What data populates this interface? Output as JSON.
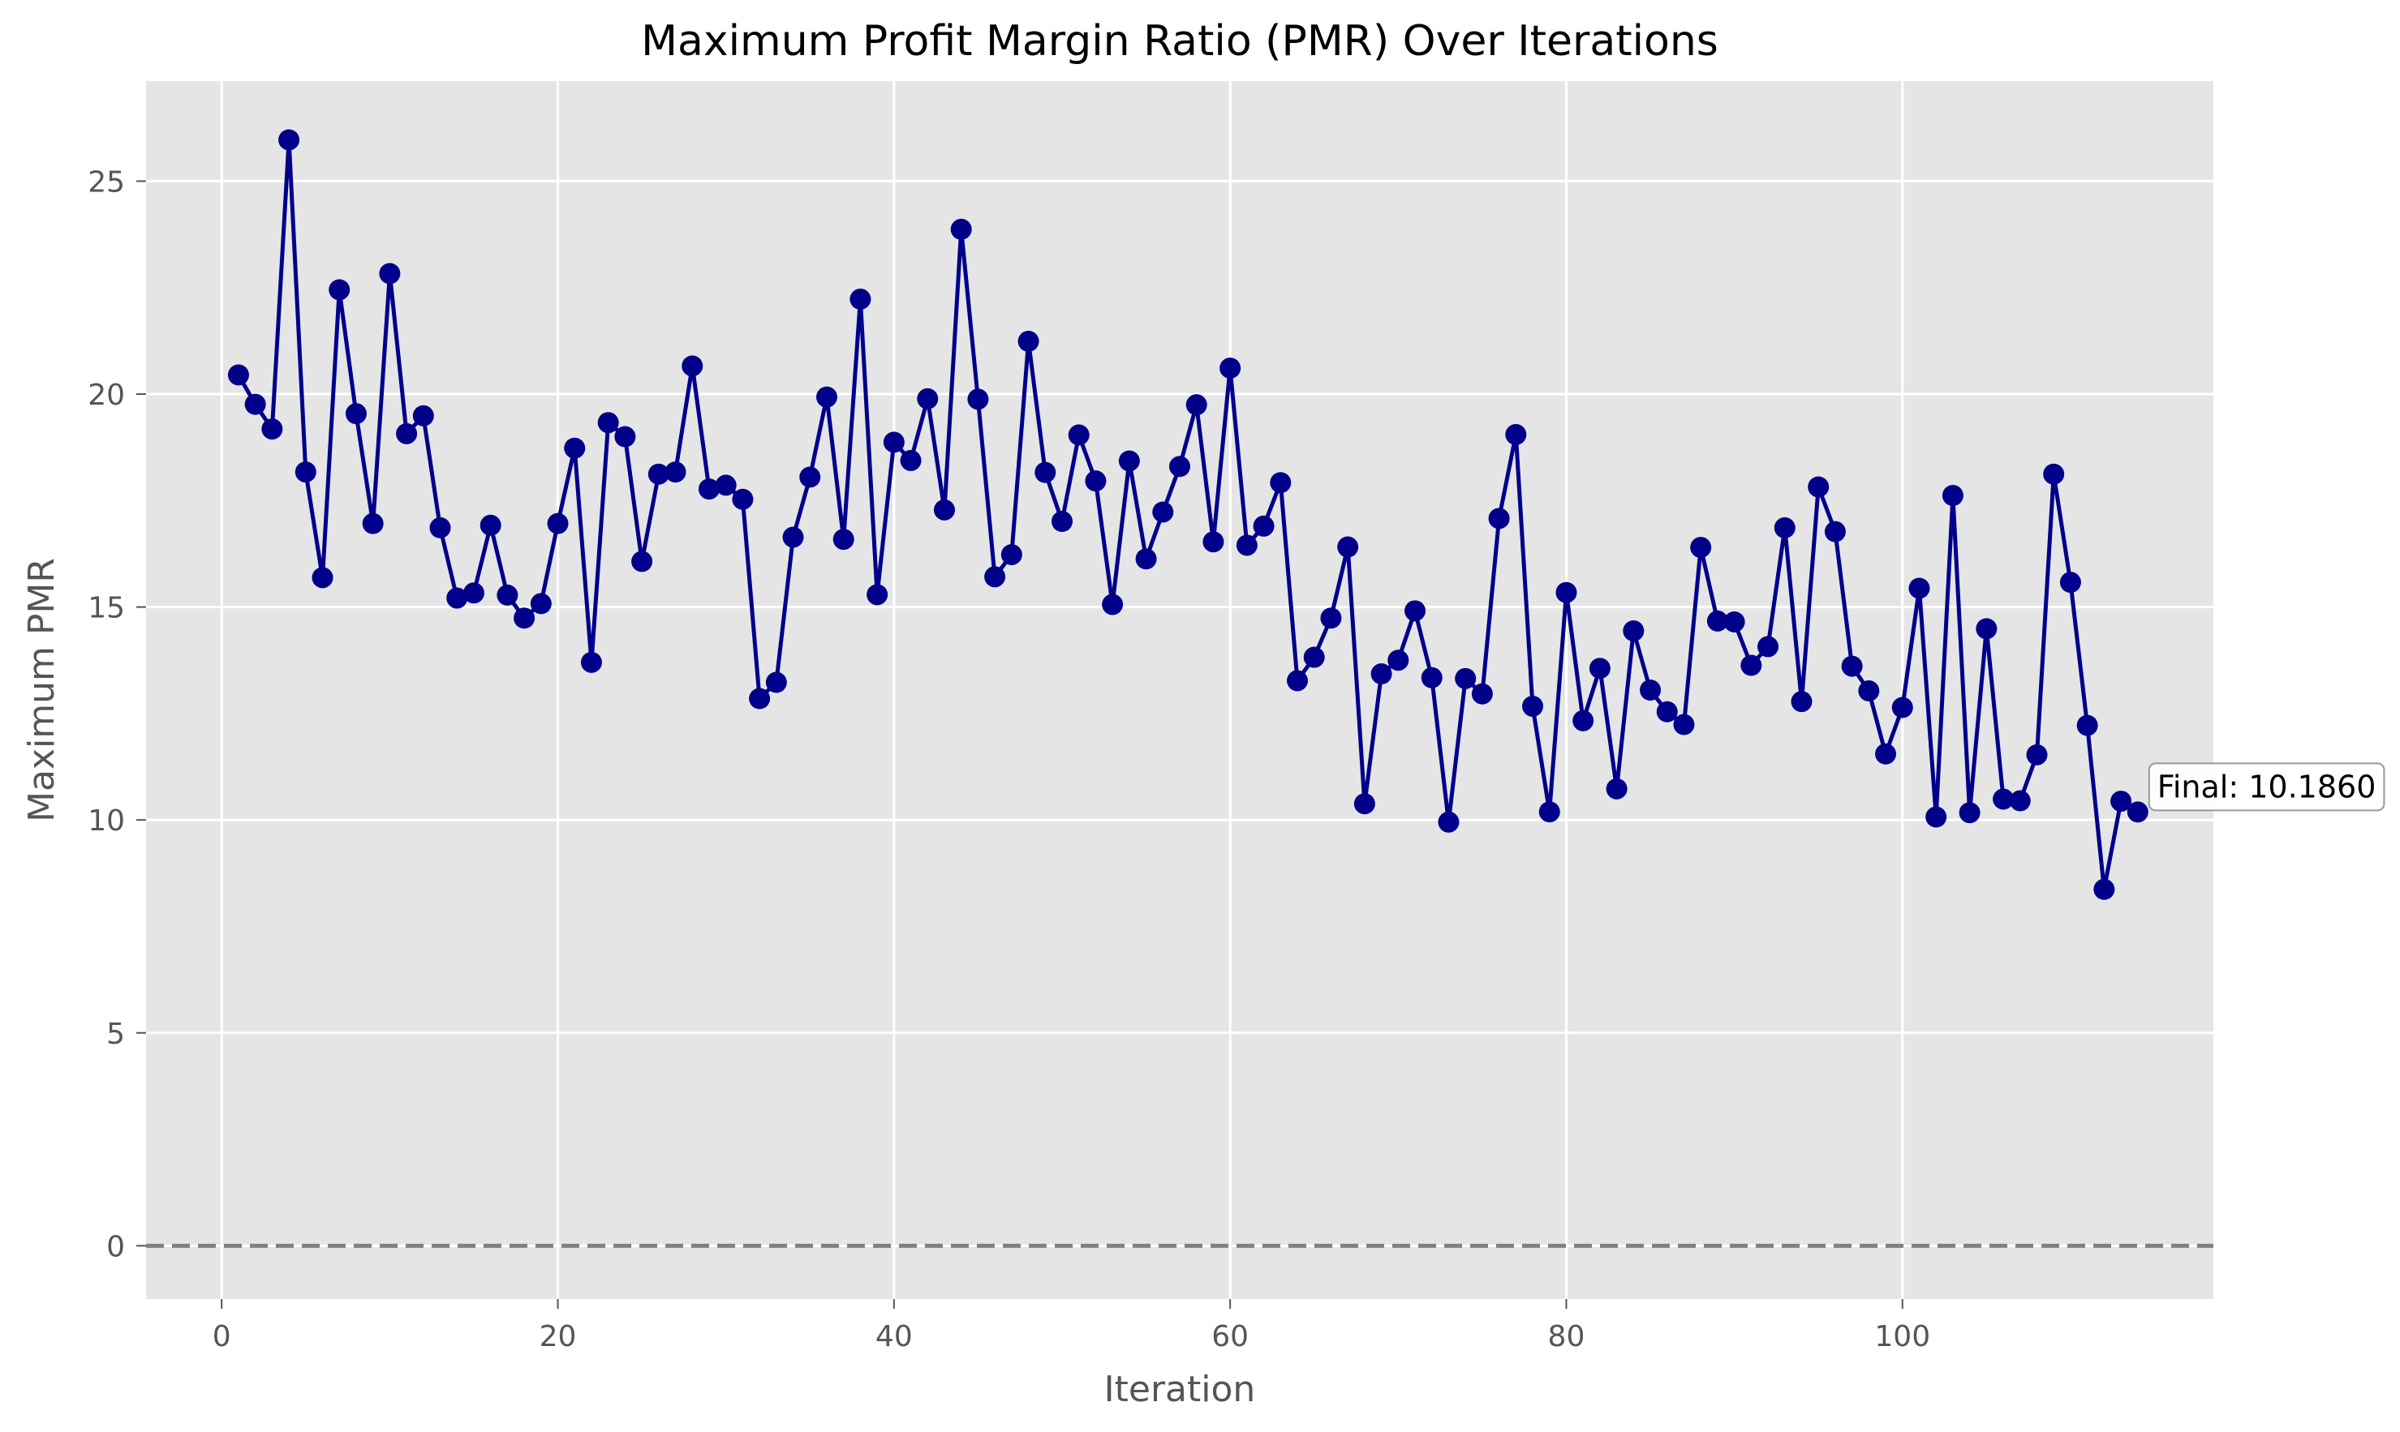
{
  "chart_data": {
    "type": "line",
    "title": "Maximum Profit Margin Ratio (PMR) Over Iterations",
    "xlabel": "Iteration",
    "ylabel": "Maximum PMR",
    "xlim": [
      -4.5,
      118.5
    ],
    "ylim": [
      -1.25,
      27.35
    ],
    "xticks": [
      0,
      20,
      40,
      60,
      80,
      100
    ],
    "yticks": [
      0,
      5,
      10,
      15,
      20,
      25
    ],
    "grid": true,
    "reference_line": {
      "y": 0,
      "style": "dashed",
      "color": "#808080"
    },
    "annotation": {
      "text": "Final: 10.1860",
      "x": 114,
      "y": 10.186
    },
    "colors": {
      "background": "#e5e5e5",
      "grid": "#ffffff",
      "line": "#00008b",
      "text": "#555555"
    },
    "series": [
      {
        "x": [
          1,
          2,
          3,
          4,
          5,
          6,
          7,
          8,
          9,
          10,
          11,
          12,
          13,
          14,
          15,
          16,
          17,
          18,
          19,
          20,
          21,
          22,
          23,
          24,
          25,
          26,
          27,
          28,
          29,
          30,
          31,
          32,
          33,
          34,
          35,
          36,
          37,
          38,
          39,
          40,
          41,
          42,
          43,
          44,
          45,
          46,
          47,
          48,
          49,
          50,
          51,
          52,
          53,
          54,
          55,
          56,
          57,
          58,
          59,
          60,
          61,
          62,
          63,
          64,
          65,
          66,
          67,
          68,
          69,
          70,
          71,
          72,
          73,
          74,
          75,
          76,
          77,
          78,
          79,
          80,
          81,
          82,
          83,
          84,
          85,
          86,
          87,
          88,
          89,
          90,
          91,
          92,
          93,
          94,
          95,
          96,
          97,
          98,
          99,
          100,
          101,
          102,
          103,
          104,
          105,
          106,
          107,
          108,
          109,
          110,
          111,
          112,
          113,
          114
        ],
        "values": [
          20.45,
          19.76,
          19.18,
          25.97,
          18.17,
          15.69,
          22.45,
          19.54,
          16.96,
          22.83,
          19.07,
          19.49,
          16.86,
          15.21,
          15.33,
          16.92,
          15.28,
          14.74,
          15.08,
          16.96,
          18.73,
          13.7,
          19.33,
          19.0,
          16.07,
          18.12,
          18.17,
          20.66,
          17.77,
          17.86,
          17.53,
          12.85,
          13.23,
          16.64,
          18.05,
          19.93,
          16.59,
          22.23,
          15.29,
          18.87,
          18.44,
          19.89,
          17.28,
          23.87,
          19.88,
          15.71,
          16.23,
          21.24,
          18.16,
          17.01,
          19.04,
          17.96,
          15.06,
          18.43,
          16.13,
          17.23,
          18.3,
          19.75,
          16.53,
          20.61,
          16.45,
          16.9,
          17.92,
          13.27,
          13.82,
          14.74,
          16.41,
          10.38,
          13.43,
          13.75,
          14.91,
          13.34,
          9.95,
          13.32,
          12.96,
          17.08,
          19.05,
          12.67,
          10.19,
          15.34,
          12.33,
          13.56,
          10.73,
          14.44,
          13.05,
          12.54,
          12.24,
          16.4,
          14.67,
          14.65,
          13.63,
          14.07,
          16.86,
          12.78,
          17.82,
          16.77,
          13.61,
          13.03,
          11.55,
          12.64,
          15.44,
          10.07,
          17.62,
          10.17,
          14.49,
          10.49,
          10.45,
          11.53,
          18.12,
          15.58,
          12.22,
          8.37,
          10.44,
          10.186
        ]
      }
    ]
  }
}
